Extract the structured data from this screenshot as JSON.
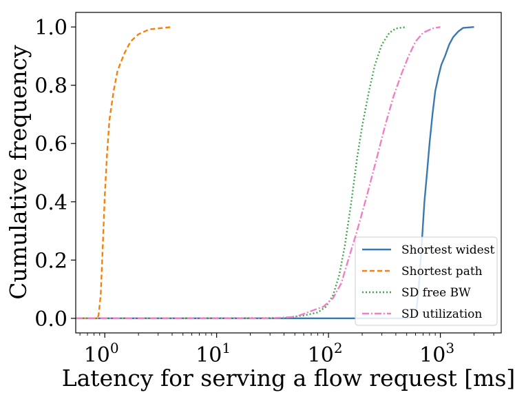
{
  "chart_data": {
    "type": "line",
    "title": "",
    "xlabel": "Latency for serving a flow request [ms]",
    "ylabel": "Cumulative frequency",
    "xscale": "log",
    "xlim": [
      0.55,
      3500
    ],
    "ylim": [
      -0.05,
      1.05
    ],
    "grid": false,
    "legend_position": "lower-right",
    "x_ticks": [
      {
        "value": 1,
        "base": "10",
        "exp": "0"
      },
      {
        "value": 10,
        "base": "10",
        "exp": "1"
      },
      {
        "value": 100,
        "base": "10",
        "exp": "2"
      },
      {
        "value": 1000,
        "base": "10",
        "exp": "3"
      }
    ],
    "y_ticks": [
      {
        "value": 0.0,
        "label": "0.0"
      },
      {
        "value": 0.2,
        "label": "0.2"
      },
      {
        "value": 0.4,
        "label": "0.4"
      },
      {
        "value": 0.6,
        "label": "0.6"
      },
      {
        "value": 0.8,
        "label": "0.8"
      },
      {
        "value": 1.0,
        "label": "1.0"
      }
    ],
    "series": [
      {
        "name": "Shortest widest",
        "color": "#3a78b0",
        "style": "solid",
        "points": [
          [
            0.55,
            0
          ],
          [
            100,
            0
          ],
          [
            500,
            0
          ],
          [
            600,
            0.005
          ],
          [
            640,
            0.1
          ],
          [
            680,
            0.25
          ],
          [
            720,
            0.4
          ],
          [
            760,
            0.5
          ],
          [
            800,
            0.6
          ],
          [
            850,
            0.7
          ],
          [
            900,
            0.78
          ],
          [
            960,
            0.83
          ],
          [
            1020,
            0.87
          ],
          [
            1100,
            0.9
          ],
          [
            1200,
            0.94
          ],
          [
            1300,
            0.965
          ],
          [
            1450,
            0.985
          ],
          [
            1600,
            0.997
          ],
          [
            2000,
            1.0
          ]
        ]
      },
      {
        "name": "Shortest path",
        "color": "#f5800a",
        "style": "dashed",
        "points": [
          [
            0.55,
            0
          ],
          [
            0.85,
            0
          ],
          [
            0.88,
            0.01
          ],
          [
            0.92,
            0.08
          ],
          [
            0.96,
            0.25
          ],
          [
            1.0,
            0.42
          ],
          [
            1.05,
            0.57
          ],
          [
            1.1,
            0.68
          ],
          [
            1.2,
            0.78
          ],
          [
            1.3,
            0.85
          ],
          [
            1.5,
            0.91
          ],
          [
            1.7,
            0.95
          ],
          [
            2.0,
            0.975
          ],
          [
            2.5,
            0.992
          ],
          [
            4.0,
            1.0
          ]
        ]
      },
      {
        "name": "SD free BW",
        "color": "#3aa648",
        "style": "dotted",
        "points": [
          [
            0.55,
            0
          ],
          [
            40,
            0.001
          ],
          [
            60,
            0.01
          ],
          [
            80,
            0.02
          ],
          [
            95,
            0.04
          ],
          [
            110,
            0.08
          ],
          [
            125,
            0.15
          ],
          [
            140,
            0.25
          ],
          [
            160,
            0.4
          ],
          [
            180,
            0.55
          ],
          [
            200,
            0.66
          ],
          [
            230,
            0.78
          ],
          [
            260,
            0.87
          ],
          [
            300,
            0.94
          ],
          [
            350,
            0.98
          ],
          [
            400,
            0.995
          ],
          [
            500,
            1.0
          ]
        ]
      },
      {
        "name": "SD utilization",
        "color": "#f07ec4",
        "style": "dashdot",
        "points": [
          [
            0.55,
            0
          ],
          [
            30,
            0
          ],
          [
            50,
            0.005
          ],
          [
            60,
            0.015
          ],
          [
            70,
            0.025
          ],
          [
            90,
            0.04
          ],
          [
            110,
            0.07
          ],
          [
            130,
            0.12
          ],
          [
            150,
            0.2
          ],
          [
            180,
            0.3
          ],
          [
            220,
            0.42
          ],
          [
            270,
            0.55
          ],
          [
            320,
            0.66
          ],
          [
            380,
            0.76
          ],
          [
            450,
            0.84
          ],
          [
            520,
            0.9
          ],
          [
            600,
            0.95
          ],
          [
            700,
            0.98
          ],
          [
            850,
            0.995
          ],
          [
            1000,
            1.0
          ]
        ]
      }
    ]
  }
}
